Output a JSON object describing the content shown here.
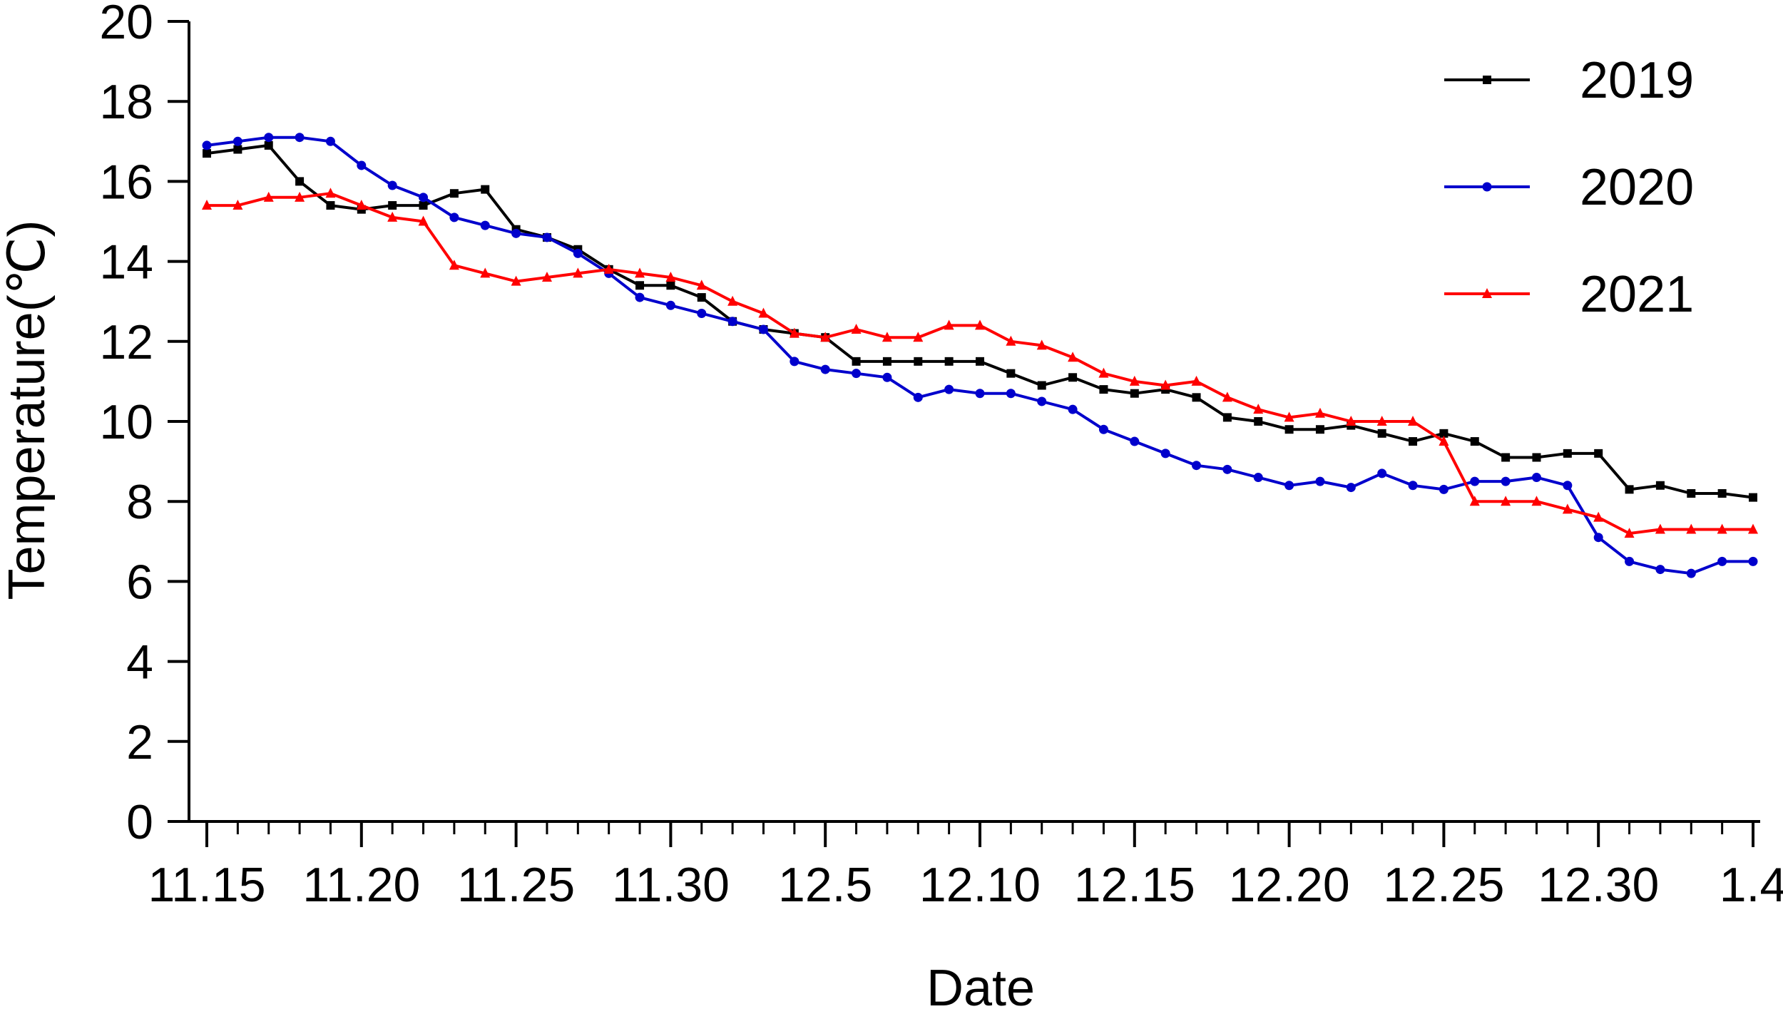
{
  "chart_data": {
    "type": "line",
    "title": "",
    "xlabel": "Date",
    "ylabel": "Temperature(℃)",
    "ylim": [
      0,
      20
    ],
    "yticks": [
      0,
      2,
      4,
      6,
      8,
      10,
      12,
      14,
      16,
      18,
      20
    ],
    "x": [
      "11.15",
      "11.16",
      "11.17",
      "11.18",
      "11.19",
      "11.20",
      "11.21",
      "11.22",
      "11.23",
      "11.24",
      "11.25",
      "11.26",
      "11.27",
      "11.28",
      "11.29",
      "11.30",
      "12.1",
      "12.2",
      "12.3",
      "12.4",
      "12.5",
      "12.6",
      "12.7",
      "12.8",
      "12.9",
      "12.10",
      "12.11",
      "12.12",
      "12.13",
      "12.14",
      "12.15",
      "12.16",
      "12.17",
      "12.18",
      "12.19",
      "12.20",
      "12.21",
      "12.22",
      "12.23",
      "12.24",
      "12.25",
      "12.26",
      "12.27",
      "12.28",
      "12.29",
      "12.30",
      "12.31",
      "1.1",
      "1.2",
      "1.3",
      "1.4"
    ],
    "xticks": [
      {
        "label": "11.15",
        "index": 0
      },
      {
        "label": "11.20",
        "index": 5
      },
      {
        "label": "11.25",
        "index": 10
      },
      {
        "label": "11.30",
        "index": 15
      },
      {
        "label": "12.5",
        "index": 20
      },
      {
        "label": "12.10",
        "index": 25
      },
      {
        "label": "12.15",
        "index": 30
      },
      {
        "label": "12.20",
        "index": 35
      },
      {
        "label": "12.25",
        "index": 40
      },
      {
        "label": "12.30",
        "index": 45
      },
      {
        "label": "1.4",
        "index": 50
      }
    ],
    "legend_position": "top-right",
    "grid": false,
    "series": [
      {
        "name": "2019",
        "color": "#000000",
        "marker": "square",
        "values": [
          16.7,
          16.8,
          16.9,
          16.0,
          15.4,
          15.3,
          15.4,
          15.4,
          15.7,
          15.8,
          14.8,
          14.6,
          14.3,
          13.8,
          13.4,
          13.4,
          13.1,
          12.5,
          12.3,
          12.2,
          12.1,
          11.5,
          11.5,
          11.5,
          11.5,
          11.5,
          11.2,
          10.9,
          11.1,
          10.8,
          10.7,
          10.8,
          10.6,
          10.1,
          10.0,
          9.8,
          9.8,
          9.9,
          9.7,
          9.5,
          9.7,
          9.5,
          9.1,
          9.1,
          9.2,
          9.2,
          8.3,
          8.4,
          8.2,
          8.2,
          8.1
        ]
      },
      {
        "name": "2020",
        "color": "#0000cc",
        "marker": "circle",
        "values": [
          16.9,
          17.0,
          17.1,
          17.1,
          17.0,
          16.4,
          15.9,
          15.6,
          15.1,
          14.9,
          14.7,
          14.6,
          14.2,
          13.7,
          13.1,
          12.9,
          12.7,
          12.5,
          12.3,
          11.5,
          11.3,
          11.2,
          11.1,
          10.6,
          10.8,
          10.7,
          10.7,
          10.5,
          10.3,
          9.8,
          9.5,
          9.2,
          8.9,
          8.8,
          8.6,
          8.4,
          8.5,
          8.35,
          8.7,
          8.4,
          8.3,
          8.5,
          8.5,
          8.6,
          8.4,
          7.1,
          6.5,
          6.3,
          6.2,
          6.5,
          6.5
        ]
      },
      {
        "name": "2021",
        "color": "#ff0000",
        "marker": "triangle",
        "values": [
          15.4,
          15.4,
          15.6,
          15.6,
          15.7,
          15.4,
          15.1,
          15.0,
          13.9,
          13.7,
          13.5,
          13.6,
          13.7,
          13.8,
          13.7,
          13.6,
          13.4,
          13.0,
          12.7,
          12.2,
          12.1,
          12.3,
          12.1,
          12.1,
          12.4,
          12.4,
          12.0,
          11.9,
          11.6,
          11.2,
          11.0,
          10.9,
          11.0,
          10.6,
          10.3,
          10.1,
          10.2,
          10.0,
          10.0,
          10.0,
          9.5,
          8.0,
          8.0,
          8.0,
          7.8,
          7.6,
          7.2,
          7.3,
          7.3,
          7.3,
          7.3
        ]
      }
    ]
  }
}
